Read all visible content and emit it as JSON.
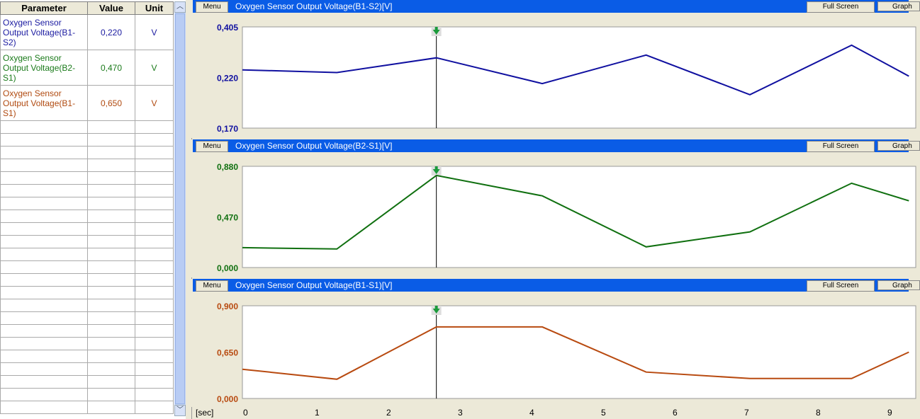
{
  "table": {
    "headers": [
      "Parameter",
      "Value",
      "Unit"
    ],
    "rows": [
      {
        "parameter": "Oxygen Sensor Output Voltage(B1-S2)",
        "value": "0,220",
        "unit": "V",
        "color": "#1a1aa0"
      },
      {
        "parameter": "Oxygen Sensor Output Voltage(B2-S1)",
        "value": "0,470",
        "unit": "V",
        "color": "#1a7a1a"
      },
      {
        "parameter": "Oxygen Sensor Output Voltage(B1-S1)",
        "value": "0,650",
        "unit": "V",
        "color": "#b04a10"
      }
    ]
  },
  "buttons": {
    "menu": "Menu",
    "full_screen": "Full Screen",
    "graph": "Graph"
  },
  "chart_data": [
    {
      "type": "line",
      "title": "Oxygen Sensor Output Voltage(B1-S2)[V]",
      "color": "#1010a0",
      "yticks": [
        "0,405",
        "0,220",
        "0,170"
      ],
      "ytick_values": [
        0.405,
        0.22,
        0.17
      ],
      "x": [
        -0.05,
        1.27,
        2.66,
        4.14,
        5.59,
        7.04,
        8.46,
        9.26
      ],
      "y": [
        0.248,
        0.238,
        0.292,
        0.214,
        0.302,
        0.203,
        0.338,
        0.225
      ]
    },
    {
      "type": "line",
      "title": "Oxygen Sensor Output Voltage(B2-S1)[V]",
      "color": "#107010",
      "yticks": [
        "0,880",
        "0,470",
        "0,000"
      ],
      "ytick_values": [
        0.88,
        0.47,
        0.0
      ],
      "x": [
        -0.05,
        1.27,
        2.66,
        4.14,
        5.59,
        7.04,
        8.46,
        9.26
      ],
      "y": [
        0.185,
        0.172,
        0.806,
        0.641,
        0.192,
        0.331,
        0.743,
        0.601
      ]
    },
    {
      "type": "line",
      "title": "Oxygen Sensor Output Voltage(B1-S1)[V]",
      "color": "#b84a10",
      "yticks": [
        "0,900",
        "0,650",
        "0,000"
      ],
      "ytick_values": [
        0.9,
        0.65,
        0.0
      ],
      "x": [
        -0.05,
        1.27,
        2.66,
        4.14,
        5.59,
        7.04,
        8.46,
        9.26
      ],
      "y": [
        0.41,
        0.27,
        0.786,
        0.786,
        0.37,
        0.28,
        0.28,
        0.65
      ]
    }
  ],
  "xaxis": {
    "unit": "[sec]",
    "ticks": [
      "0",
      "1",
      "2",
      "3",
      "4",
      "5",
      "6",
      "7",
      "8",
      "9"
    ]
  },
  "cursor_x": 2.66
}
